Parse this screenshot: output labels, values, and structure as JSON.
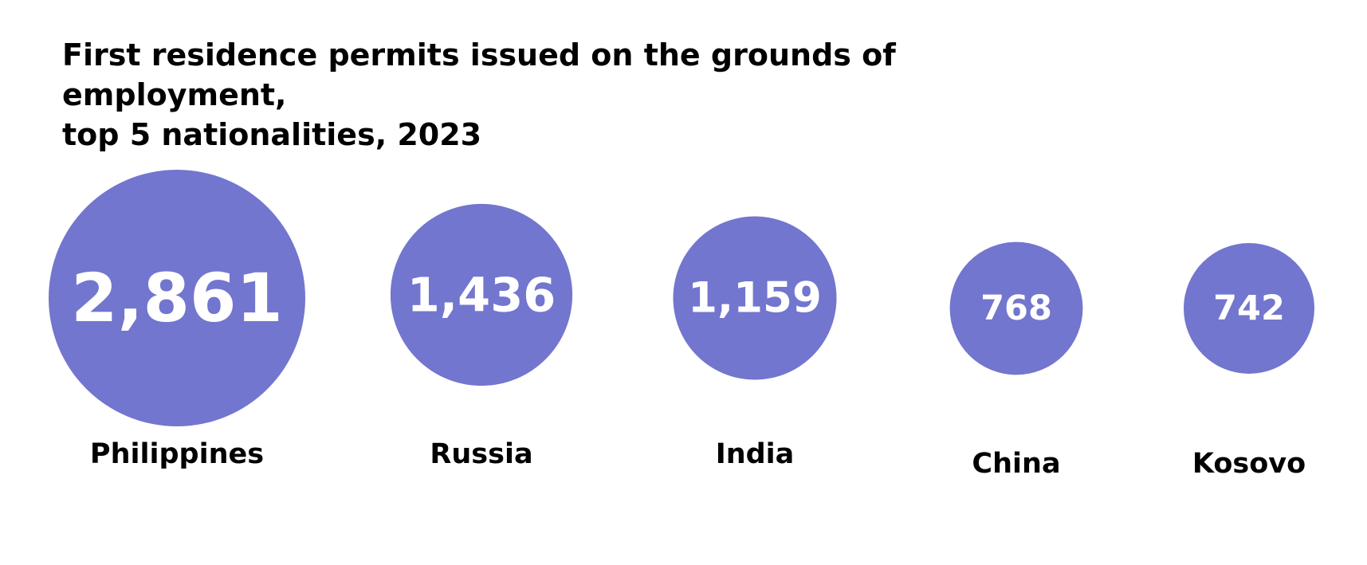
{
  "chart_data": {
    "type": "bubble",
    "title_lines": [
      "First residence permits issued on the grounds of employment,",
      "top 5 nationalities, 2023"
    ],
    "categories": [
      "Philippines",
      "Russia",
      "India",
      "China",
      "Kosovo"
    ],
    "values": [
      2861,
      1436,
      1159,
      768,
      742
    ],
    "value_labels": [
      "2,861",
      "1,436",
      "1,159",
      "768",
      "742"
    ],
    "colors": {
      "bubble": "#7276CE",
      "value_text": "#FFFFFF",
      "category_text": "#000000"
    }
  }
}
